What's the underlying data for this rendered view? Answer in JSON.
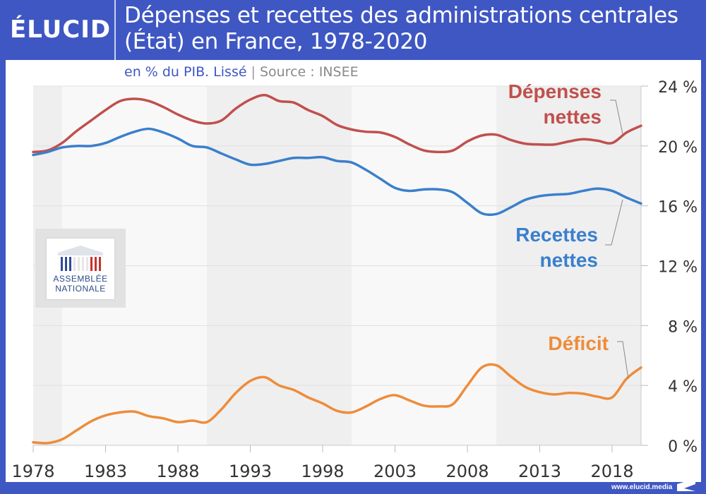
{
  "header": {
    "logo": "ÉLUCID",
    "title_line1": "Dépenses et recettes des administrations centrales",
    "title_line2": "(État) en France, 1978-2020",
    "subtitle_unit": "en % du PIB. Lissé",
    "subtitle_sep": "|",
    "subtitle_source": "Source : INSEE"
  },
  "footer": {
    "url": "www.elucid.media"
  },
  "badge": {
    "line1": "ASSEMBLÉE",
    "line2": "NATIONALE"
  },
  "colors": {
    "brand": "#3f57c3",
    "depenses": "#c0504d",
    "recettes": "#3a7fcc",
    "deficit": "#ee8c3a",
    "shade": "#efefef",
    "plot_bg": "#f8f8f8"
  },
  "chart_data": {
    "type": "line",
    "title": "Dépenses et recettes des administrations centrales (État) en France, 1978-2020",
    "subtitle": "en % du PIB. Lissé | Source : INSEE",
    "xlabel": "",
    "ylabel": "",
    "xlim": [
      1978,
      2020
    ],
    "ylim": [
      0,
      24
    ],
    "x_ticks": [
      1978,
      1983,
      1988,
      1993,
      1998,
      2003,
      2008,
      2013,
      2018
    ],
    "x_tick_labels": [
      "1978",
      "1983",
      "1988",
      "1993",
      "1998",
      "2003",
      "2008",
      "2013",
      "2018"
    ],
    "y_ticks": [
      0,
      4,
      8,
      12,
      16,
      20,
      24
    ],
    "y_tick_labels": [
      "0 %",
      "4 %",
      "8 %",
      "12 %",
      "16 %",
      "20 %",
      "24 %"
    ],
    "y_axis_side": "right",
    "grid": true,
    "shaded_periods": [
      [
        1978,
        1980
      ],
      [
        1990,
        2000
      ],
      [
        2010,
        2020
      ]
    ],
    "x": [
      1978,
      1979,
      1980,
      1981,
      1982,
      1983,
      1984,
      1985,
      1986,
      1987,
      1988,
      1989,
      1990,
      1991,
      1992,
      1993,
      1994,
      1995,
      1996,
      1997,
      1998,
      1999,
      2000,
      2001,
      2002,
      2003,
      2004,
      2005,
      2006,
      2007,
      2008,
      2009,
      2010,
      2011,
      2012,
      2013,
      2014,
      2015,
      2016,
      2017,
      2018,
      2019,
      2020
    ],
    "series": [
      {
        "name": "Dépenses nettes",
        "label_lines": [
          "Dépenses",
          "nettes"
        ],
        "color": "#c0504d",
        "values": [
          19.6,
          19.7,
          20.2,
          21.0,
          21.7,
          22.4,
          23.0,
          23.15,
          23.0,
          22.6,
          22.1,
          21.7,
          21.5,
          21.7,
          22.5,
          23.1,
          23.4,
          23.0,
          22.9,
          22.4,
          22.0,
          21.4,
          21.1,
          20.95,
          20.9,
          20.6,
          20.1,
          19.7,
          19.6,
          19.7,
          20.3,
          20.7,
          20.75,
          20.4,
          20.15,
          20.1,
          20.1,
          20.3,
          20.45,
          20.35,
          20.2,
          20.9,
          21.35
        ]
      },
      {
        "name": "Recettes nettes",
        "label_lines": [
          "Recettes",
          "nettes"
        ],
        "color": "#3a7fcc",
        "values": [
          19.4,
          19.6,
          19.9,
          20.0,
          20.0,
          20.2,
          20.6,
          20.95,
          21.15,
          20.9,
          20.5,
          20.0,
          19.9,
          19.5,
          19.1,
          18.75,
          18.8,
          19.0,
          19.2,
          19.2,
          19.25,
          19.0,
          18.9,
          18.4,
          17.8,
          17.2,
          17.0,
          17.1,
          17.1,
          16.9,
          16.2,
          15.5,
          15.45,
          15.9,
          16.4,
          16.65,
          16.75,
          16.8,
          17.0,
          17.15,
          17.0,
          16.55,
          16.15
        ]
      },
      {
        "name": "Déficit",
        "label_lines": [
          "Déficit"
        ],
        "color": "#ee8c3a",
        "values": [
          0.2,
          0.15,
          0.4,
          1.0,
          1.6,
          2.0,
          2.2,
          2.25,
          1.95,
          1.8,
          1.55,
          1.65,
          1.55,
          2.4,
          3.5,
          4.3,
          4.55,
          4.0,
          3.7,
          3.2,
          2.8,
          2.3,
          2.2,
          2.6,
          3.1,
          3.35,
          3.0,
          2.65,
          2.6,
          2.75,
          4.0,
          5.2,
          5.35,
          4.6,
          3.9,
          3.55,
          3.4,
          3.5,
          3.45,
          3.25,
          3.2,
          4.45,
          5.2
        ]
      }
    ]
  }
}
